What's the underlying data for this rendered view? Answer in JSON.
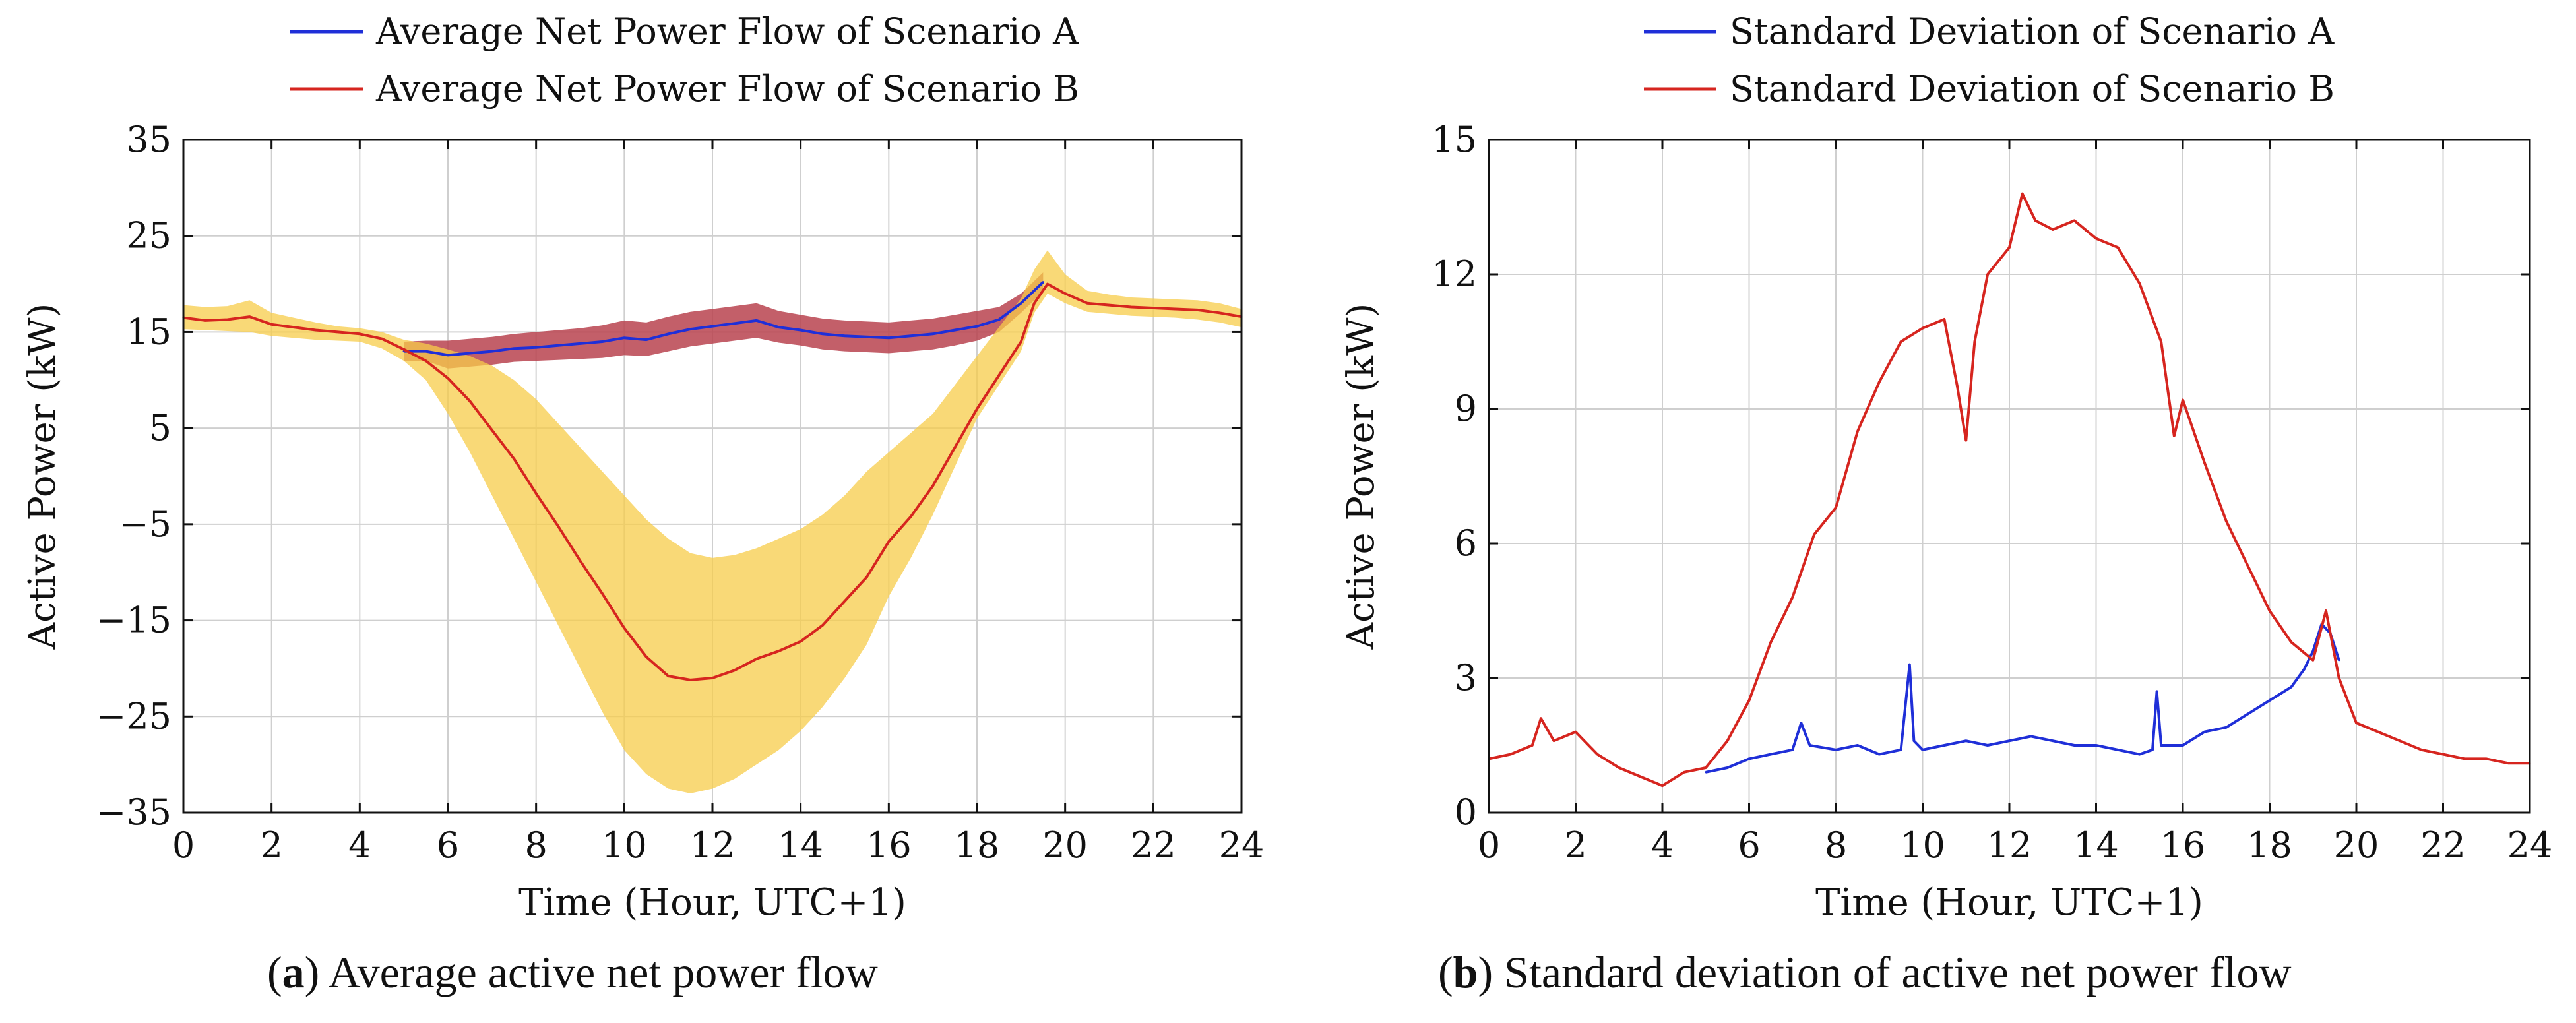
{
  "chart_data": [
    {
      "id": "a",
      "type": "line",
      "title": "",
      "xlabel": "Time (Hour, UTC+1)",
      "ylabel": "Active Power (kW)",
      "xlim": [
        0,
        24
      ],
      "ylim": [
        -35,
        35
      ],
      "xticks": [
        0,
        2,
        4,
        6,
        8,
        10,
        12,
        14,
        16,
        18,
        20,
        22,
        24
      ],
      "yticks": [
        -35,
        -25,
        -15,
        -5,
        5,
        15,
        25,
        35
      ],
      "ytick_labels": [
        "−35",
        "−25",
        "−15",
        "−5",
        "5",
        "15",
        "25",
        "35"
      ],
      "grid": true,
      "legend_position": "top-center",
      "series": [
        {
          "name": "Average Net Power Flow of Scenario A",
          "color": "#1f2fd8",
          "band_color": "#b8434f",
          "x": [
            5,
            5.5,
            6,
            6.5,
            7,
            7.5,
            8,
            8.5,
            9,
            9.5,
            10,
            10.5,
            11,
            11.5,
            12,
            12.5,
            13,
            13.5,
            14,
            14.5,
            15,
            15.5,
            16,
            16.5,
            17,
            17.5,
            18,
            18.5,
            19,
            19.5
          ],
          "y": [
            13,
            13,
            12.6,
            12.8,
            13,
            13.3,
            13.4,
            13.6,
            13.8,
            14,
            14.4,
            14.2,
            14.8,
            15.3,
            15.6,
            15.9,
            16.2,
            15.5,
            15.2,
            14.8,
            14.6,
            14.5,
            14.4,
            14.6,
            14.8,
            15.2,
            15.6,
            16.3,
            18,
            20.2
          ],
          "band_low": [
            12,
            12,
            11.2,
            11.4,
            11.6,
            11.9,
            12,
            12.1,
            12.2,
            12.3,
            12.6,
            12.5,
            13,
            13.5,
            13.8,
            14.1,
            14.4,
            13.9,
            13.6,
            13.2,
            13,
            12.9,
            12.8,
            13,
            13.2,
            13.6,
            14.1,
            15,
            17,
            19.2
          ],
          "band_high": [
            14,
            14.1,
            14.1,
            14.3,
            14.5,
            14.8,
            15,
            15.2,
            15.4,
            15.7,
            16.2,
            16,
            16.6,
            17.1,
            17.4,
            17.7,
            18,
            17.2,
            16.8,
            16.4,
            16.2,
            16.1,
            16,
            16.2,
            16.4,
            16.8,
            17.2,
            17.6,
            19,
            21.2
          ]
        },
        {
          "name": "Average Net Power Flow of Scenario B",
          "color": "#d6251f",
          "band_color": "#f7cc4a",
          "x": [
            0,
            0.5,
            1,
            1.5,
            2,
            2.5,
            3,
            3.5,
            4,
            4.5,
            5,
            5.5,
            6,
            6.5,
            7,
            7.5,
            8,
            8.5,
            9,
            9.5,
            10,
            10.5,
            11,
            11.5,
            12,
            12.5,
            13,
            13.5,
            14,
            14.5,
            15,
            15.5,
            16,
            16.5,
            17,
            17.5,
            18,
            18.5,
            19,
            19.3,
            19.6,
            20,
            20.5,
            21,
            21.5,
            22,
            22.5,
            23,
            23.5,
            24
          ],
          "y": [
            16.5,
            16.2,
            16.3,
            16.6,
            15.8,
            15.5,
            15.2,
            15,
            14.8,
            14.3,
            13.2,
            12,
            10.2,
            7.8,
            4.8,
            1.8,
            -1.8,
            -5.2,
            -8.8,
            -12.2,
            -15.8,
            -18.8,
            -20.8,
            -21.2,
            -21,
            -20.2,
            -19,
            -18.2,
            -17.2,
            -15.5,
            -13,
            -10.5,
            -6.8,
            -4.2,
            -1,
            3,
            7,
            10.5,
            14,
            18,
            20,
            19,
            18,
            17.8,
            17.6,
            17.5,
            17.4,
            17.3,
            17,
            16.6
          ],
          "band_low": [
            15.3,
            15.2,
            15.1,
            15,
            14.6,
            14.4,
            14.2,
            14.1,
            14,
            13.3,
            12,
            10,
            6.5,
            2.5,
            -2,
            -6.5,
            -11,
            -15.5,
            -20,
            -24.5,
            -28.5,
            -31,
            -32.5,
            -33,
            -32.5,
            -31.5,
            -30,
            -28.5,
            -26.5,
            -24,
            -21,
            -17.5,
            -12.5,
            -8.5,
            -4,
            1,
            6,
            9.5,
            13,
            17,
            19,
            18,
            17.1,
            16.9,
            16.7,
            16.6,
            16.5,
            16.3,
            16,
            15.5
          ],
          "band_high": [
            17.8,
            17.6,
            17.7,
            18.3,
            17,
            16.5,
            16,
            15.6,
            15.4,
            15,
            14.2,
            13.8,
            13.2,
            12.5,
            11.5,
            10,
            8,
            5.5,
            3,
            0.5,
            -2,
            -4.5,
            -6.5,
            -8,
            -8.5,
            -8.2,
            -7.5,
            -6.5,
            -5.5,
            -4,
            -2,
            0.5,
            2.5,
            4.5,
            6.5,
            9.5,
            12.5,
            15.5,
            18.5,
            21.5,
            23.5,
            21,
            19.3,
            18.9,
            18.6,
            18.5,
            18.4,
            18.3,
            18,
            17.4
          ]
        }
      ]
    },
    {
      "id": "b",
      "type": "line",
      "title": "",
      "xlabel": "Time (Hour, UTC+1)",
      "ylabel": "Active Power (kW)",
      "xlim": [
        0,
        24
      ],
      "ylim": [
        0,
        15
      ],
      "xticks": [
        0,
        2,
        4,
        6,
        8,
        10,
        12,
        14,
        16,
        18,
        20,
        22,
        24
      ],
      "yticks": [
        0,
        3,
        6,
        9,
        12,
        15
      ],
      "ytick_labels": [
        "0",
        "3",
        "6",
        "9",
        "12",
        "15"
      ],
      "grid": true,
      "legend_position": "top-center",
      "series": [
        {
          "name": "Standard Deviation of Scenario A",
          "color": "#1f2fd8",
          "x": [
            5,
            5.5,
            6,
            6.5,
            7,
            7.2,
            7.4,
            8,
            8.5,
            9,
            9.5,
            9.7,
            9.8,
            10,
            10.5,
            11,
            11.5,
            12,
            12.5,
            13,
            13.5,
            14,
            14.5,
            15,
            15.3,
            15.4,
            15.5,
            16,
            16.5,
            17,
            17.5,
            18,
            18.5,
            18.8,
            19,
            19.2,
            19.4,
            19.6
          ],
          "y": [
            0.9,
            1,
            1.2,
            1.3,
            1.4,
            2,
            1.5,
            1.4,
            1.5,
            1.3,
            1.4,
            3.3,
            1.6,
            1.4,
            1.5,
            1.6,
            1.5,
            1.6,
            1.7,
            1.6,
            1.5,
            1.5,
            1.4,
            1.3,
            1.4,
            2.7,
            1.5,
            1.5,
            1.8,
            1.9,
            2.2,
            2.5,
            2.8,
            3.2,
            3.6,
            4.2,
            4,
            3.4
          ]
        },
        {
          "name": "Standard Deviation of Scenario B",
          "color": "#d6251f",
          "x": [
            0,
            0.5,
            1,
            1.2,
            1.5,
            2,
            2.5,
            3,
            3.5,
            4,
            4.5,
            5,
            5.5,
            6,
            6.5,
            7,
            7.5,
            8,
            8.5,
            9,
            9.5,
            10,
            10.5,
            10.8,
            11,
            11.2,
            11.5,
            12,
            12.3,
            12.6,
            13,
            13.5,
            14,
            14.5,
            15,
            15.5,
            15.8,
            16,
            16.5,
            17,
            17.5,
            18,
            18.5,
            19,
            19.3,
            19.6,
            20,
            20.5,
            21,
            21.5,
            22,
            22.5,
            23,
            23.5,
            24
          ],
          "y": [
            1.2,
            1.3,
            1.5,
            2.1,
            1.6,
            1.8,
            1.3,
            1,
            0.8,
            0.6,
            0.9,
            1,
            1.6,
            2.5,
            3.8,
            4.8,
            6.2,
            6.8,
            8.5,
            9.6,
            10.5,
            10.8,
            11,
            9.5,
            8.3,
            10.5,
            12,
            12.6,
            13.8,
            13.2,
            13,
            13.2,
            12.8,
            12.6,
            11.8,
            10.5,
            8.4,
            9.2,
            7.8,
            6.5,
            5.5,
            4.5,
            3.8,
            3.4,
            4.5,
            3,
            2,
            1.8,
            1.6,
            1.4,
            1.3,
            1.2,
            1.2,
            1.1,
            1.1
          ]
        }
      ]
    }
  ],
  "captions": [
    {
      "letter": "a",
      "open": "(",
      "close": ")",
      "text": " Average active net power flow"
    },
    {
      "letter": "b",
      "open": "(",
      "close": ")",
      "text": " Standard deviation of active net power flow"
    }
  ]
}
